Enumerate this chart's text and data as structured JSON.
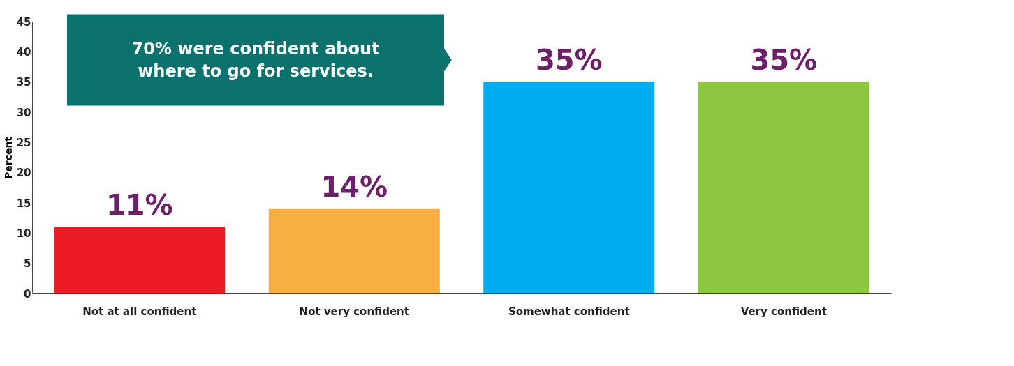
{
  "chart_data": {
    "type": "bar",
    "ylabel": "Percent",
    "categories": [
      "Not at all confident",
      "Not very confident",
      "Somewhat confident",
      "Very confident"
    ],
    "values": [
      11,
      14,
      35,
      35
    ],
    "colors": [
      "#ed1c24",
      "#f9ae40",
      "#00aeef",
      "#8dc63f"
    ],
    "value_labels": [
      "11%",
      "14%",
      "35%",
      "35%"
    ],
    "ylim": [
      0,
      45
    ],
    "yticks": [
      0,
      5,
      10,
      15,
      20,
      25,
      30,
      35,
      40,
      45
    ],
    "grid": false,
    "annotations": [
      "70% were confident about where to go for services."
    ]
  }
}
